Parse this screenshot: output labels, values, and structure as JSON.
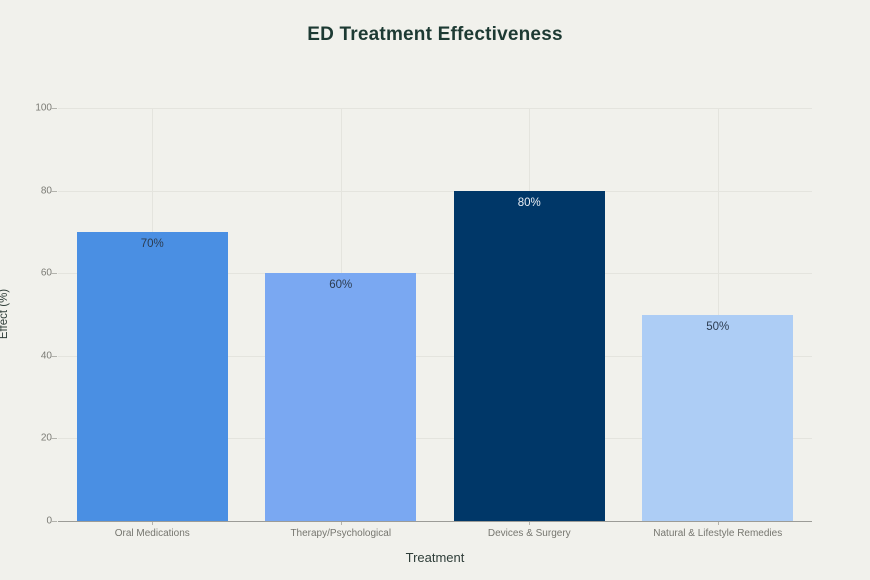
{
  "title": "ED Treatment Effectiveness",
  "background_color": "#f1f1ec",
  "chart_data": {
    "type": "bar",
    "title": "ED Treatment Effectiveness",
    "categories": [
      "Oral Medications",
      "Therapy/Psychological",
      "Devices & Surgery",
      "Natural & Lifestyle Remedies"
    ],
    "values": [
      70,
      60,
      80,
      50
    ],
    "bar_labels": [
      "70%",
      "60%",
      "80%",
      "50%"
    ],
    "bar_colors": [
      "#4a8fe3",
      "#7aa8f2",
      "#003768",
      "#adcdf5"
    ],
    "bar_label_colors": [
      "#2c3c50",
      "#2c3c50",
      "#e9eef5",
      "#2c3c50"
    ],
    "xlabel": "Treatment",
    "ylabel": "Effect (%)",
    "ylim": [
      0,
      100
    ],
    "yticks": [
      0,
      20,
      40,
      60,
      80,
      100
    ],
    "grid": true,
    "gridline_color": "#e4e4de",
    "baseline_color": "#9c9c97",
    "legend": "none"
  }
}
